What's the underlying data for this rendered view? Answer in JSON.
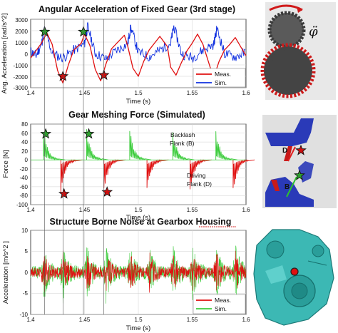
{
  "chart_data": [
    {
      "type": "line",
      "title": "Angular Acceleration of Fixed Gear (3rd stage)",
      "xlabel": "Time (s)",
      "ylabel": "Ang. Acceleration [rad/s^2]",
      "xlim": [
        1.4,
        1.6
      ],
      "ylim": [
        -3000,
        3000
      ],
      "x_ticks": [
        "1.4",
        "1.45",
        "1.5",
        "1.55",
        "1.6"
      ],
      "y_ticks": [
        "3000",
        "2000",
        "1000",
        "0",
        "-1000",
        "-2000",
        "-3000"
      ],
      "legend": {
        "placement": "bottom-right",
        "entries": [
          "Meas.",
          "Sim."
        ]
      },
      "series": [
        {
          "name": "Meas.",
          "color": "#e01010",
          "x": [
            1.4,
            1.41,
            1.415,
            1.42,
            1.425,
            1.43,
            1.435,
            1.44,
            1.447,
            1.45,
            1.455,
            1.46,
            1.465,
            1.47,
            1.475,
            1.48,
            1.487,
            1.49,
            1.495,
            1.5,
            1.505,
            1.51,
            1.515,
            1.52,
            1.527,
            1.53,
            1.535,
            1.54,
            1.545,
            1.55,
            1.555,
            1.56,
            1.567,
            1.57,
            1.575,
            1.58,
            1.585,
            1.59,
            1.6
          ],
          "y": [
            -400,
            900,
            1800,
            800,
            -1500,
            -2600,
            -1000,
            300,
            900,
            1700,
            700,
            -1400,
            -2400,
            -900,
            400,
            900,
            1600,
            700,
            -1300,
            -2000,
            -700,
            300,
            900,
            1500,
            600,
            -1200,
            -1900,
            -800,
            200,
            900,
            1700,
            800,
            -1300,
            -2100,
            -700,
            300,
            800,
            1400,
            -200
          ]
        },
        {
          "name": "Sim.",
          "color": "#1030e0",
          "x": [
            1.4,
            1.405,
            1.41,
            1.413,
            1.42,
            1.43,
            1.44,
            1.45,
            1.453,
            1.46,
            1.47,
            1.48,
            1.49,
            1.493,
            1.5,
            1.51,
            1.52,
            1.53,
            1.533,
            1.54,
            1.55,
            1.56,
            1.57,
            1.573,
            1.58,
            1.59,
            1.6
          ],
          "y": [
            200,
            -200,
            800,
            2200,
            0,
            -400,
            300,
            800,
            2400,
            0,
            -500,
            300,
            800,
            2300,
            100,
            -300,
            300,
            900,
            2400,
            0,
            -400,
            300,
            800,
            2200,
            0,
            -300,
            100
          ]
        }
      ],
      "markers": [
        {
          "kind": "star",
          "color": "#2ea02e",
          "x": 1.413,
          "y": 1900
        },
        {
          "kind": "star",
          "color": "#2ea02e",
          "x": 1.449,
          "y": 1900
        },
        {
          "kind": "star",
          "color": "#d01010",
          "x": 1.43,
          "y": -2000
        },
        {
          "kind": "star",
          "color": "#d01010",
          "x": 1.468,
          "y": -1900
        }
      ]
    },
    {
      "type": "line",
      "title": "Gear Meshing Force (Simulated)",
      "xlabel": "Time (s)",
      "ylabel": "Force [N]",
      "xlim": [
        1.4,
        1.6
      ],
      "ylim": [
        -100,
        80
      ],
      "x_ticks": [
        "1.4",
        "1.45",
        "1.5",
        "1.55",
        "1.6"
      ],
      "y_ticks": [
        "80",
        "60",
        "40",
        "20",
        "0",
        "-20",
        "-40",
        "-60",
        "-80",
        "-100"
      ],
      "annotations": [
        "Backlash",
        "Flank (B)",
        "Driving",
        "Flank (D)"
      ],
      "series": [
        {
          "name": "Backlash Flank (B)",
          "color": "#3ccc3c",
          "pulse_start_x": [
            1.412,
            1.452,
            1.492,
            1.532,
            1.572
          ],
          "pulse_peak_y": 62
        },
        {
          "name": "Driving Flank (D)",
          "color": "#e01010",
          "pulse_start_x": [
            1.428,
            1.468,
            1.508,
            1.548,
            1.588
          ],
          "pulse_peak_y": -68
        }
      ],
      "markers": [
        {
          "kind": "star",
          "color": "#2ea02e",
          "x": 1.414,
          "y": 58
        },
        {
          "kind": "star",
          "color": "#2ea02e",
          "x": 1.454,
          "y": 58
        },
        {
          "kind": "star",
          "color": "#d01010",
          "x": 1.431,
          "y": -76
        },
        {
          "kind": "star",
          "color": "#d01010",
          "x": 1.471,
          "y": -72
        }
      ]
    },
    {
      "type": "line",
      "title": "Structure Borne Noise at Gearbox Housing",
      "xlabel": "Time (s)",
      "ylabel": "Acceleration [m/s^2 ]",
      "xlim": [
        1.4,
        1.6
      ],
      "ylim": [
        -10,
        10
      ],
      "x_ticks": [
        "1.4",
        "1.45",
        "1.5",
        "1.55",
        "1.6"
      ],
      "y_ticks": [
        "10",
        "5",
        "0",
        "-5",
        "-10"
      ],
      "legend": {
        "placement": "bottom-right",
        "entries": [
          "Meas.",
          "Sim."
        ]
      },
      "series": [
        {
          "name": "Meas.",
          "color": "#e01010",
          "burst_x": [
            1.412,
            1.43,
            1.452,
            1.47,
            1.492,
            1.51,
            1.532,
            1.55,
            1.572,
            1.59
          ],
          "burst_amplitude": 4.5
        },
        {
          "name": "Sim.",
          "color": "#3ccc3c",
          "burst_x": [
            1.412,
            1.43,
            1.452,
            1.47,
            1.492,
            1.51,
            1.532,
            1.55,
            1.572,
            1.59
          ],
          "burst_amplitude": 6
        }
      ]
    }
  ],
  "colors": {
    "meas": "#e01010",
    "sim_blue": "#1030e0",
    "sim_green": "#3ccc3c",
    "star_green": "#2ea02e",
    "star_red": "#d01010",
    "gear_dark": "#4a4a4a",
    "gear_red": "#cc1a1a",
    "housing": "#3cb8b4"
  },
  "panels": [
    {
      "name": "gear-pair-picture",
      "symbol": "φ̈"
    },
    {
      "name": "tooth-contact-picture",
      "labels": [
        "D",
        "B"
      ]
    },
    {
      "name": "gearbox-housing-picture"
    }
  ]
}
